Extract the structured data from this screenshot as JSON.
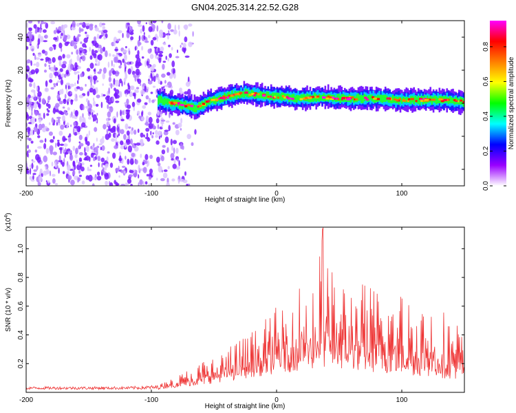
{
  "figure": {
    "title": "GN04.2025.314.22.52.G28"
  },
  "chart_data": [
    {
      "type": "heatmap",
      "name": "spectrogram",
      "xlabel": "Height of straight line (km)",
      "ylabel": "Frequency (Hz)",
      "xlim": [
        -200,
        150
      ],
      "ylim": [
        -50,
        50
      ],
      "xticks": [
        -200,
        -100,
        0,
        100
      ],
      "yticks": [
        -40,
        -20,
        0,
        20,
        40
      ],
      "signal_track": {
        "x": [
          -95,
          -85,
          -75,
          -65,
          -55,
          -45,
          -35,
          -25,
          -15,
          -5,
          5,
          15,
          25,
          35,
          45,
          55,
          65,
          75,
          85,
          95,
          105,
          115,
          125,
          135,
          145
        ],
        "frequency": [
          2,
          0,
          -1,
          -3,
          1,
          3,
          5,
          6,
          5,
          4,
          4,
          3,
          3,
          4,
          3,
          3,
          3,
          3,
          3,
          2,
          2,
          2,
          2,
          2,
          1
        ]
      },
      "noise_region_xlim": [
        -200,
        -80
      ],
      "colorbar": {
        "label": "Normalized spectral amplitude",
        "range": [
          0.0,
          0.95
        ],
        "ticks": [
          "0.0",
          "0.2",
          "0.4",
          "0.6",
          "0.8"
        ],
        "colors": [
          "#ffffff",
          "#9900ff",
          "#0000ff",
          "#00ffff",
          "#00ff00",
          "#ffff00",
          "#ff7f00",
          "#ff0000",
          "#ff00ff"
        ]
      }
    },
    {
      "type": "line",
      "name": "snr",
      "xlabel": "Height of straight line (km)",
      "ylabel": "SNR (10 * v/v)",
      "y_multiplier": "(x10",
      "y_multiplier_exp": "4",
      "y_multiplier_close": ")",
      "xlim": [
        -200,
        150
      ],
      "ylim": [
        0,
        1.15
      ],
      "xticks": [
        -200,
        -100,
        0,
        100
      ],
      "yticks": [
        0.2,
        0.4,
        0.6,
        0.8,
        1.0
      ],
      "color": "#ee3333",
      "envelope": {
        "x": [
          -200,
          -120,
          -95,
          -85,
          -75,
          -60,
          -45,
          -30,
          -15,
          0,
          10,
          20,
          30,
          37,
          45,
          60,
          75,
          85,
          100,
          115,
          130,
          145,
          150
        ],
        "floor": [
          0.02,
          0.02,
          0.02,
          0.03,
          0.04,
          0.05,
          0.07,
          0.09,
          0.11,
          0.13,
          0.14,
          0.15,
          0.16,
          0.17,
          0.16,
          0.15,
          0.14,
          0.13,
          0.12,
          0.11,
          0.1,
          0.09,
          0.09
        ],
        "peak": [
          0.04,
          0.04,
          0.05,
          0.09,
          0.14,
          0.22,
          0.29,
          0.38,
          0.46,
          0.6,
          0.72,
          0.78,
          0.85,
          1.15,
          0.83,
          0.8,
          0.76,
          0.74,
          0.72,
          0.68,
          0.62,
          0.5,
          0.45
        ]
      }
    }
  ]
}
